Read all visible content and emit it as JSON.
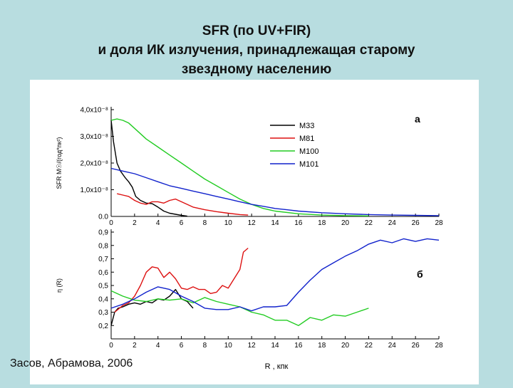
{
  "slide": {
    "title_lines": [
      "SFR (по  UV+FIR)",
      "и доля ИК излучения, принадлежащая старому",
      "звездному населению"
    ],
    "credit": "Засов, Абрамова, 2006"
  },
  "colors": {
    "background": "#b8dde0",
    "M33": "#000000",
    "M81": "#dd1111",
    "M100": "#22cc22",
    "M101": "#1122cc"
  },
  "chart_data": [
    {
      "type": "line",
      "panel_label": "a",
      "ylabel": "SFR  M☉/(год*пк²)",
      "xlim": [
        0,
        28
      ],
      "ylim": [
        0,
        4e-08
      ],
      "yticks": [
        0,
        1e-08,
        2e-08,
        3e-08,
        4e-08
      ],
      "ytick_labels": [
        "0.0",
        "1,0x10⁻⁸",
        "2,0x10⁻⁸",
        "3,0x10⁻⁸",
        "4,0x10⁻⁸"
      ],
      "xticks": [
        0,
        2,
        4,
        6,
        8,
        10,
        12,
        14,
        16,
        18,
        20,
        22,
        24,
        26,
        28
      ],
      "legend": {
        "position": "top-right",
        "entries": [
          "M33",
          "M81",
          "M100",
          "M101"
        ]
      },
      "series": [
        {
          "name": "M33",
          "color": "#000000",
          "x": [
            0,
            0.2,
            0.5,
            0.8,
            1.2,
            1.5,
            1.8,
            2.1,
            2.5,
            3.0,
            3.5,
            4.0,
            4.5,
            5.0,
            5.5,
            6.0,
            6.5
          ],
          "y": [
            3.6e-08,
            2.8e-08,
            2e-08,
            1.7e-08,
            1.45e-08,
            1.3e-08,
            1.1e-08,
            7.5e-09,
            6e-09,
            5e-09,
            4.8e-09,
            3.5e-09,
            2e-09,
            1.2e-09,
            8e-10,
            4e-10,
            1e-10
          ]
        },
        {
          "name": "M81",
          "color": "#dd1111",
          "x": [
            0.5,
            1.0,
            1.5,
            2.0,
            2.5,
            3.0,
            3.5,
            4.0,
            4.5,
            5.0,
            5.5,
            6.0,
            6.5,
            7.0,
            8.0,
            9.0,
            10.0,
            11.0,
            11.7
          ],
          "y": [
            8.5e-09,
            8e-09,
            7.5e-09,
            6e-09,
            5e-09,
            4.5e-09,
            5.5e-09,
            5.5e-09,
            5e-09,
            6e-09,
            6.5e-09,
            5.5e-09,
            4.5e-09,
            3.5e-09,
            2.5e-09,
            1.8e-09,
            1.2e-09,
            7e-10,
            5e-10
          ]
        },
        {
          "name": "M100",
          "color": "#22cc22",
          "x": [
            0,
            0.5,
            1,
            1.5,
            2,
            2.5,
            3,
            4,
            5,
            6,
            7,
            8,
            9,
            10,
            11,
            12,
            13,
            14,
            16,
            18,
            20,
            22
          ],
          "y": [
            3.6e-08,
            3.65e-08,
            3.6e-08,
            3.5e-08,
            3.3e-08,
            3.1e-08,
            2.9e-08,
            2.6e-08,
            2.3e-08,
            2e-08,
            1.7e-08,
            1.4e-08,
            1.15e-08,
            9e-09,
            6.5e-09,
            4.5e-09,
            3e-09,
            2e-09,
            1e-09,
            5e-10,
            3e-10,
            2e-10
          ]
        },
        {
          "name": "M101",
          "color": "#1122cc",
          "x": [
            0,
            1,
            2,
            3,
            4,
            5,
            6,
            7,
            8,
            9,
            10,
            11,
            12,
            13,
            14,
            15,
            16,
            18,
            20,
            22,
            24,
            26,
            28
          ],
          "y": [
            1.8e-08,
            1.7e-08,
            1.6e-08,
            1.45e-08,
            1.3e-08,
            1.15e-08,
            1.05e-08,
            9.5e-09,
            8.5e-09,
            7.5e-09,
            6.5e-09,
            5.5e-09,
            4.5e-09,
            3.8e-09,
            3e-09,
            2.5e-09,
            2e-09,
            1.4e-09,
            1e-09,
            7e-10,
            5e-10,
            4e-10,
            3e-10
          ]
        }
      ]
    },
    {
      "type": "line",
      "panel_label": "б",
      "ylabel": "η (R)",
      "xlabel": "R , кпк",
      "xlim": [
        0,
        28
      ],
      "ylim": [
        0.1,
        0.9
      ],
      "yticks": [
        0.2,
        0.3,
        0.4,
        0.5,
        0.6,
        0.7,
        0.8,
        0.9
      ],
      "ytick_labels": [
        "0,2",
        "0,3",
        "0,4",
        "0,5",
        "0,6",
        "0,7",
        "0,8",
        "0,9"
      ],
      "xticks": [
        0,
        2,
        4,
        6,
        8,
        10,
        12,
        14,
        16,
        18,
        20,
        22,
        24,
        26,
        28
      ],
      "series": [
        {
          "name": "M33",
          "color": "#000000",
          "x": [
            0,
            0.3,
            0.6,
            1.0,
            1.5,
            2.0,
            2.5,
            3.0,
            3.5,
            4.0,
            4.5,
            5.0,
            5.5,
            6.0,
            6.5,
            7.0
          ],
          "y": [
            0.2,
            0.3,
            0.33,
            0.34,
            0.36,
            0.37,
            0.36,
            0.38,
            0.37,
            0.4,
            0.39,
            0.42,
            0.47,
            0.4,
            0.38,
            0.33
          ]
        },
        {
          "name": "M81",
          "color": "#dd1111",
          "x": [
            0.3,
            1.0,
            1.5,
            2.0,
            2.5,
            3.0,
            3.5,
            4.0,
            4.5,
            5.0,
            5.5,
            6.0,
            6.5,
            7.0,
            7.5,
            8.0,
            8.5,
            9.0,
            9.5,
            10.0,
            10.5,
            11.0,
            11.3,
            11.7
          ],
          "y": [
            0.3,
            0.35,
            0.37,
            0.42,
            0.5,
            0.6,
            0.64,
            0.63,
            0.56,
            0.6,
            0.55,
            0.48,
            0.47,
            0.49,
            0.47,
            0.47,
            0.44,
            0.45,
            0.5,
            0.48,
            0.55,
            0.62,
            0.75,
            0.78
          ]
        },
        {
          "name": "M100",
          "color": "#22cc22",
          "x": [
            0,
            1,
            2,
            3,
            4,
            5,
            6,
            7,
            8,
            9,
            10,
            11,
            12,
            13,
            14,
            15,
            16,
            17,
            18,
            19,
            20,
            21,
            22
          ],
          "y": [
            0.46,
            0.42,
            0.39,
            0.38,
            0.4,
            0.39,
            0.4,
            0.37,
            0.41,
            0.38,
            0.36,
            0.34,
            0.3,
            0.28,
            0.24,
            0.24,
            0.2,
            0.26,
            0.24,
            0.28,
            0.27,
            0.3,
            0.33
          ]
        },
        {
          "name": "M101",
          "color": "#1122cc",
          "x": [
            0,
            1,
            2,
            3,
            4,
            5,
            6,
            7,
            8,
            9,
            10,
            11,
            12,
            13,
            14,
            15,
            16,
            17,
            18,
            19,
            20,
            21,
            22,
            23,
            24,
            25,
            26,
            27,
            28
          ],
          "y": [
            0.33,
            0.36,
            0.4,
            0.45,
            0.49,
            0.47,
            0.42,
            0.38,
            0.33,
            0.32,
            0.32,
            0.34,
            0.31,
            0.34,
            0.34,
            0.35,
            0.45,
            0.54,
            0.62,
            0.67,
            0.72,
            0.76,
            0.81,
            0.84,
            0.82,
            0.85,
            0.83,
            0.85,
            0.84
          ]
        }
      ]
    }
  ]
}
